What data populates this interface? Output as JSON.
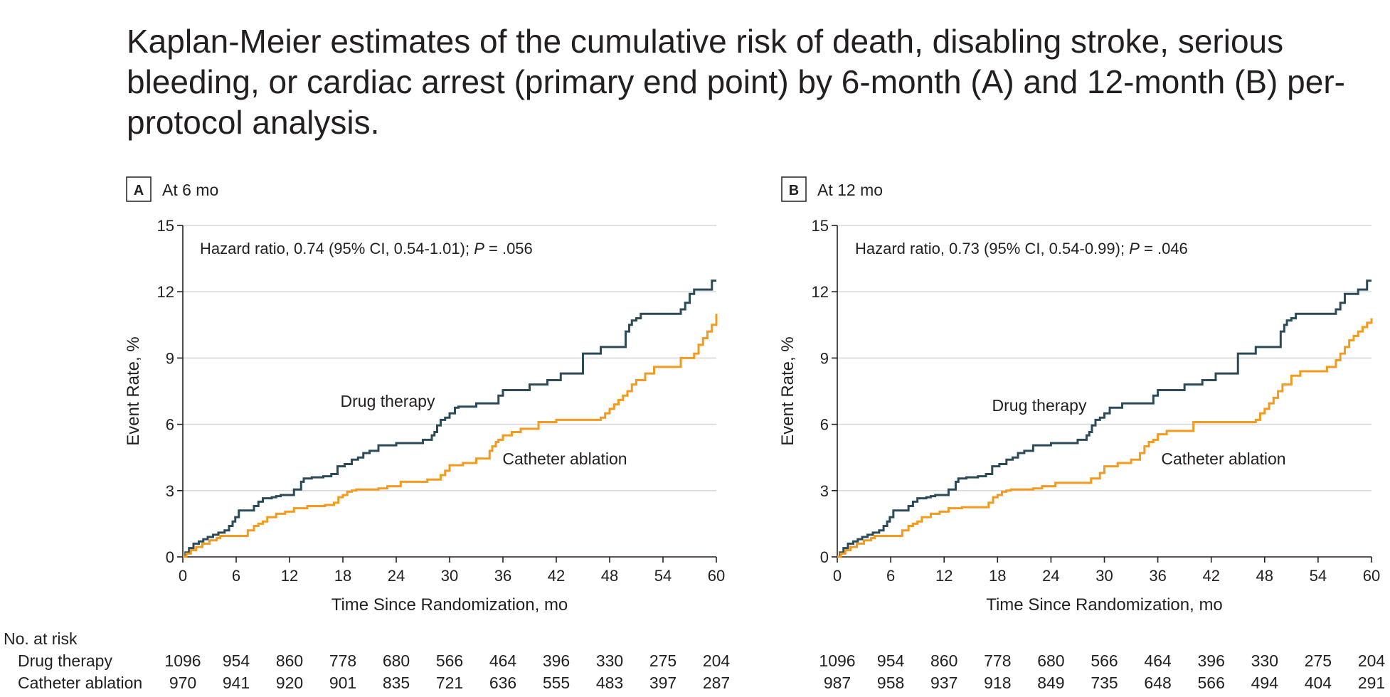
{
  "title": "Kaplan-Meier estimates of the cumulative risk of death, disabling stroke, serious bleeding, or cardiac arrest (primary end point) by 6-month (A) and 12-month (B) per-protocol analysis.",
  "colors": {
    "drug_therapy": "#2c4b59",
    "catheter_ablation": "#f39a1f",
    "grid": "#d9d9d9",
    "axis": "#231f20"
  },
  "risk_table": {
    "heading": "No. at risk",
    "row_labels": [
      "Drug therapy",
      "Catheter ablation"
    ]
  },
  "chart_data": [
    {
      "type": "line",
      "panel_letter": "A",
      "panel_title": "At 6 mo",
      "xlabel": "Time Since Randomization, mo",
      "ylabel": "Event Rate, %",
      "xlim": [
        0,
        60
      ],
      "ylim": [
        0,
        15
      ],
      "x_ticks": [
        0,
        6,
        12,
        18,
        24,
        30,
        36,
        42,
        48,
        54,
        60
      ],
      "y_ticks": [
        0,
        3,
        6,
        9,
        12,
        15
      ],
      "grid": "horizontal",
      "annotation": {
        "prefix": "Hazard ratio, 0.74 (95% CI, 0.54-1.01); ",
        "p_symbol": "P",
        "suffix": " = .056"
      },
      "series": [
        {
          "name": "Drug therapy",
          "step_x": [
            0,
            0.3,
            0.7,
            1.2,
            1.8,
            2.3,
            2.8,
            3.4,
            4.0,
            4.7,
            5.2,
            5.6,
            5.9,
            6.3,
            8.0,
            8.5,
            9.0,
            10.0,
            10.5,
            11.0,
            12.5,
            13.3,
            13.6,
            14.5,
            15.8,
            16.7,
            17.4,
            18.2,
            19.0,
            19.7,
            20.3,
            21.0,
            22.0,
            24.0,
            27.0,
            28.0,
            28.3,
            28.6,
            29.0,
            29.5,
            30.0,
            30.6,
            31.0,
            33.0,
            35.5,
            36.0,
            39.0,
            41.0,
            42.5,
            44.5,
            45.0,
            47.0,
            48.0,
            49.8,
            50.2,
            50.5,
            51.0,
            51.5,
            55.5,
            56.0,
            56.5,
            57.0,
            57.5,
            58.5,
            59.5,
            60.0
          ],
          "step_y": [
            0,
            0.2,
            0.4,
            0.6,
            0.7,
            0.8,
            0.9,
            1.0,
            1.1,
            1.2,
            1.4,
            1.6,
            1.8,
            2.1,
            2.3,
            2.5,
            2.65,
            2.7,
            2.75,
            2.8,
            3.05,
            3.4,
            3.55,
            3.6,
            3.65,
            3.75,
            4.1,
            4.2,
            4.4,
            4.5,
            4.7,
            4.8,
            5.05,
            5.15,
            5.3,
            5.5,
            5.65,
            5.95,
            6.2,
            6.3,
            6.5,
            6.75,
            6.8,
            6.95,
            7.3,
            7.55,
            7.8,
            8.0,
            8.3,
            8.3,
            9.2,
            9.5,
            9.5,
            10.2,
            10.5,
            10.7,
            10.8,
            11.0,
            11.0,
            11.2,
            11.5,
            11.9,
            12.1,
            12.1,
            12.5,
            12.5
          ]
        },
        {
          "name": "Catheter ablation",
          "step_x": [
            0,
            0.4,
            0.9,
            1.5,
            2.2,
            3.0,
            3.8,
            4.2,
            7.0,
            7.3,
            8.0,
            8.5,
            9.0,
            9.5,
            10.5,
            11.5,
            12.5,
            14.0,
            16.0,
            17.0,
            17.5,
            18.0,
            18.5,
            19.0,
            19.5,
            22.0,
            23.0,
            24.5,
            27.5,
            29.0,
            29.5,
            30.0,
            31.5,
            33.0,
            34.5,
            34.8,
            35.2,
            35.5,
            36.0,
            37.0,
            38.0,
            40.0,
            42.0,
            47.0,
            47.5,
            48.0,
            48.5,
            49.0,
            49.5,
            50.0,
            50.5,
            51.0,
            52.0,
            53.0,
            55.0,
            56.0,
            57.5,
            58.0,
            58.5,
            59.0,
            59.5,
            60.0
          ],
          "step_y": [
            0,
            0.15,
            0.3,
            0.45,
            0.6,
            0.75,
            0.85,
            0.95,
            0.95,
            1.2,
            1.4,
            1.5,
            1.6,
            1.8,
            1.95,
            2.05,
            2.2,
            2.3,
            2.35,
            2.45,
            2.7,
            2.8,
            2.95,
            3.0,
            3.05,
            3.1,
            3.2,
            3.4,
            3.5,
            3.7,
            3.9,
            4.15,
            4.25,
            4.45,
            4.8,
            5.0,
            5.2,
            5.3,
            5.5,
            5.65,
            5.8,
            6.1,
            6.2,
            6.3,
            6.5,
            6.7,
            6.9,
            7.1,
            7.3,
            7.5,
            7.8,
            8.0,
            8.3,
            8.6,
            8.6,
            9.0,
            9.2,
            9.6,
            9.9,
            10.2,
            10.5,
            11.0
          ]
        }
      ],
      "at_risk": {
        "x": [
          0,
          6,
          12,
          18,
          24,
          30,
          36,
          42,
          48,
          54,
          60
        ],
        "drug_therapy": [
          "1096",
          "954",
          "860",
          "778",
          "680",
          "566",
          "464",
          "396",
          "330",
          "275",
          "204"
        ],
        "catheter_ablation": [
          "970",
          "941",
          "920",
          "901",
          "835",
          "721",
          "636",
          "555",
          "483",
          "397",
          "287"
        ]
      }
    },
    {
      "type": "line",
      "panel_letter": "B",
      "panel_title": "At 12 mo",
      "xlabel": "Time Since Randomization, mo",
      "ylabel": "Event Rate, %",
      "xlim": [
        0,
        60
      ],
      "ylim": [
        0,
        15
      ],
      "x_ticks": [
        0,
        6,
        12,
        18,
        24,
        30,
        36,
        42,
        48,
        54,
        60
      ],
      "y_ticks": [
        0,
        3,
        6,
        9,
        12,
        15
      ],
      "grid": "horizontal",
      "annotation": {
        "prefix": "Hazard ratio, 0.73 (95% CI, 0.54-0.99); ",
        "p_symbol": "P",
        "suffix": " = .046"
      },
      "series": [
        {
          "name": "Drug therapy",
          "step_x": [
            0,
            0.3,
            0.7,
            1.2,
            1.8,
            2.3,
            2.8,
            3.4,
            4.0,
            4.7,
            5.2,
            5.6,
            5.9,
            6.3,
            8.0,
            8.5,
            9.0,
            10.0,
            10.5,
            11.0,
            12.5,
            13.3,
            13.6,
            14.5,
            15.8,
            16.7,
            17.4,
            18.2,
            19.0,
            19.7,
            20.3,
            21.0,
            22.0,
            24.0,
            27.0,
            28.0,
            28.3,
            28.6,
            29.0,
            29.5,
            30.0,
            30.6,
            32.0,
            35.5,
            36.0,
            39.0,
            41.0,
            42.5,
            44.5,
            45.0,
            47.0,
            48.0,
            49.8,
            50.2,
            50.5,
            51.0,
            51.5,
            55.5,
            56.0,
            56.5,
            57.0,
            58.5,
            59.5,
            60.0
          ],
          "step_y": [
            0,
            0.2,
            0.4,
            0.6,
            0.7,
            0.8,
            0.9,
            1.0,
            1.1,
            1.2,
            1.4,
            1.6,
            1.8,
            2.1,
            2.3,
            2.5,
            2.65,
            2.7,
            2.75,
            2.8,
            3.05,
            3.4,
            3.55,
            3.6,
            3.65,
            3.75,
            4.1,
            4.2,
            4.4,
            4.5,
            4.7,
            4.8,
            5.05,
            5.15,
            5.3,
            5.5,
            5.65,
            5.95,
            6.2,
            6.3,
            6.5,
            6.75,
            6.95,
            7.3,
            7.55,
            7.8,
            8.0,
            8.3,
            8.3,
            9.2,
            9.5,
            9.5,
            10.2,
            10.5,
            10.7,
            10.8,
            11.0,
            11.0,
            11.2,
            11.5,
            11.9,
            12.1,
            12.5,
            12.5
          ]
        },
        {
          "name": "Catheter ablation",
          "step_x": [
            0,
            0.4,
            0.9,
            1.5,
            2.2,
            3.0,
            3.8,
            4.2,
            7.0,
            7.3,
            8.0,
            8.5,
            9.0,
            9.5,
            10.5,
            11.5,
            12.5,
            14.0,
            16.0,
            17.0,
            17.5,
            18.0,
            18.5,
            19.0,
            19.5,
            22.0,
            23.0,
            24.5,
            28.5,
            29.5,
            30.0,
            31.5,
            33.0,
            34.0,
            34.5,
            35.0,
            35.5,
            36.0,
            37.0,
            40.0,
            47.0,
            47.5,
            48.0,
            48.5,
            49.0,
            49.5,
            50.0,
            51.0,
            52.0,
            55.0,
            56.0,
            56.5,
            57.0,
            57.5,
            58.0,
            58.5,
            59.0,
            59.5,
            60.0
          ],
          "step_y": [
            0,
            0.15,
            0.3,
            0.45,
            0.6,
            0.75,
            0.85,
            0.95,
            0.95,
            1.2,
            1.4,
            1.5,
            1.6,
            1.8,
            1.95,
            2.05,
            2.2,
            2.25,
            2.25,
            2.45,
            2.7,
            2.8,
            2.95,
            3.0,
            3.05,
            3.1,
            3.2,
            3.35,
            3.55,
            3.8,
            4.1,
            4.25,
            4.4,
            4.7,
            5.0,
            5.2,
            5.3,
            5.55,
            5.7,
            6.1,
            6.2,
            6.5,
            6.7,
            6.95,
            7.2,
            7.5,
            7.8,
            8.2,
            8.4,
            8.6,
            8.9,
            9.2,
            9.5,
            9.8,
            10.0,
            10.2,
            10.4,
            10.6,
            10.8
          ]
        }
      ],
      "at_risk": {
        "x": [
          0,
          6,
          12,
          18,
          24,
          30,
          36,
          42,
          48,
          54,
          60
        ],
        "drug_therapy": [
          "1096",
          "954",
          "860",
          "778",
          "680",
          "566",
          "464",
          "396",
          "330",
          "275",
          "204"
        ],
        "catheter_ablation": [
          "987",
          "958",
          "937",
          "918",
          "849",
          "735",
          "648",
          "566",
          "494",
          "404",
          "291"
        ]
      }
    }
  ]
}
